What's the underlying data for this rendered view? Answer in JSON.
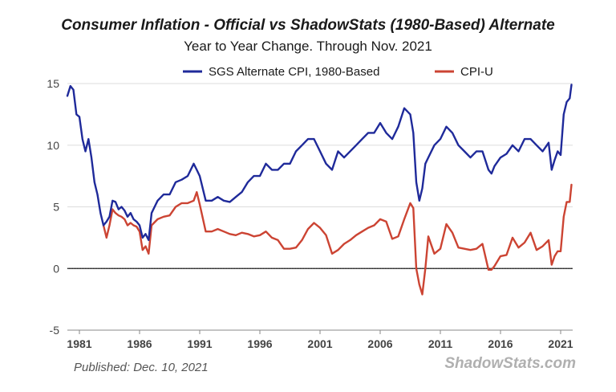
{
  "chart_data": {
    "type": "line",
    "title": "Consumer Inflation - Official vs ShadowStats (1980-Based) Alternate",
    "subtitle": "Year to Year Change. Through Nov. 2021",
    "published": "Published: Dec. 10, 2021",
    "source": "ShadowStats.com",
    "ylim": [
      -5,
      15
    ],
    "xlim": [
      1980.0,
      2022.0
    ],
    "yticks": [
      "-5",
      "0",
      "5",
      "10",
      "15"
    ],
    "xticks": [
      "1981",
      "1986",
      "1991",
      "1996",
      "2001",
      "2006",
      "2011",
      "2016",
      "2021"
    ],
    "grid": true,
    "legend_position": "top",
    "colors": {
      "sgs": "#1f2a9a",
      "cpiu": "#cc4433",
      "zero_line": "#333333",
      "grid": "#dddddd"
    },
    "series": [
      {
        "name": "SGS Alternate CPI, 1980-Based",
        "color": "#1f2a9a",
        "x": [
          1980.0,
          1980.25,
          1980.5,
          1980.75,
          1981.0,
          1981.25,
          1981.5,
          1981.75,
          1982.0,
          1982.25,
          1982.5,
          1982.75,
          1983.0,
          1983.25,
          1983.5,
          1983.75,
          1984.0,
          1984.25,
          1984.5,
          1984.75,
          1985.0,
          1985.25,
          1985.5,
          1985.75,
          1986.0,
          1986.25,
          1986.5,
          1986.75,
          1987.0,
          1987.5,
          1988.0,
          1988.5,
          1989.0,
          1989.5,
          1990.0,
          1990.5,
          1990.75,
          1991.0,
          1991.5,
          1992.0,
          1992.5,
          1993.0,
          1993.5,
          1994.0,
          1994.5,
          1995.0,
          1995.5,
          1996.0,
          1996.5,
          1997.0,
          1997.5,
          1998.0,
          1998.5,
          1999.0,
          1999.5,
          2000.0,
          2000.5,
          2001.0,
          2001.5,
          2002.0,
          2002.5,
          2003.0,
          2003.5,
          2004.0,
          2004.5,
          2005.0,
          2005.5,
          2006.0,
          2006.5,
          2007.0,
          2007.5,
          2008.0,
          2008.5,
          2008.75,
          2009.0,
          2009.25,
          2009.5,
          2009.75,
          2010.0,
          2010.5,
          2011.0,
          2011.5,
          2012.0,
          2012.5,
          2013.0,
          2013.5,
          2014.0,
          2014.5,
          2015.0,
          2015.25,
          2015.5,
          2016.0,
          2016.5,
          2017.0,
          2017.5,
          2018.0,
          2018.5,
          2019.0,
          2019.5,
          2020.0,
          2020.25,
          2020.5,
          2020.75,
          2021.0,
          2021.25,
          2021.5,
          2021.75,
          2021.9
        ],
        "values": [
          14.0,
          14.8,
          14.5,
          12.5,
          12.3,
          10.5,
          9.5,
          10.5,
          9.0,
          7.0,
          6.0,
          4.5,
          3.5,
          3.8,
          4.2,
          5.5,
          5.4,
          4.8,
          5.0,
          4.7,
          4.2,
          4.5,
          4.0,
          3.8,
          3.5,
          2.5,
          2.8,
          2.3,
          4.5,
          5.5,
          6.0,
          6.0,
          7.0,
          7.2,
          7.5,
          8.5,
          8.0,
          7.5,
          5.5,
          5.5,
          5.8,
          5.5,
          5.4,
          5.8,
          6.2,
          7.0,
          7.5,
          7.5,
          8.5,
          8.0,
          8.0,
          8.5,
          8.5,
          9.5,
          10.0,
          10.5,
          10.5,
          9.5,
          8.5,
          8.0,
          9.5,
          9.0,
          9.5,
          10.0,
          10.5,
          11.0,
          11.0,
          11.8,
          11.0,
          10.5,
          11.5,
          13.0,
          12.5,
          11.0,
          7.0,
          5.5,
          6.5,
          8.5,
          9.0,
          10.0,
          10.5,
          11.5,
          11.0,
          10.0,
          9.5,
          9.0,
          9.5,
          9.5,
          8.0,
          7.7,
          8.3,
          9.0,
          9.3,
          10.0,
          9.5,
          10.5,
          10.5,
          10.0,
          9.5,
          10.2,
          8.0,
          8.8,
          9.5,
          9.2,
          12.5,
          13.5,
          13.8,
          14.9
        ]
      },
      {
        "name": "CPI-U",
        "color": "#cc4433",
        "x": [
          1983.0,
          1983.25,
          1983.5,
          1983.75,
          1984.0,
          1984.25,
          1984.5,
          1984.75,
          1985.0,
          1985.25,
          1985.5,
          1985.75,
          1986.0,
          1986.25,
          1986.5,
          1986.75,
          1987.0,
          1987.5,
          1988.0,
          1988.5,
          1989.0,
          1989.5,
          1990.0,
          1990.5,
          1990.75,
          1991.0,
          1991.5,
          1992.0,
          1992.5,
          1993.0,
          1993.5,
          1994.0,
          1994.5,
          1995.0,
          1995.5,
          1996.0,
          1996.5,
          1997.0,
          1997.5,
          1998.0,
          1998.5,
          1999.0,
          1999.5,
          2000.0,
          2000.5,
          2001.0,
          2001.5,
          2002.0,
          2002.5,
          2003.0,
          2003.5,
          2004.0,
          2004.5,
          2005.0,
          2005.5,
          2006.0,
          2006.5,
          2007.0,
          2007.5,
          2008.0,
          2008.5,
          2008.75,
          2009.0,
          2009.25,
          2009.5,
          2009.75,
          2010.0,
          2010.5,
          2011.0,
          2011.5,
          2012.0,
          2012.5,
          2013.0,
          2013.5,
          2014.0,
          2014.5,
          2015.0,
          2015.25,
          2015.5,
          2016.0,
          2016.5,
          2017.0,
          2017.5,
          2018.0,
          2018.5,
          2019.0,
          2019.5,
          2020.0,
          2020.25,
          2020.5,
          2020.75,
          2021.0,
          2021.25,
          2021.5,
          2021.75,
          2021.9
        ],
        "values": [
          3.5,
          2.5,
          3.5,
          4.8,
          4.5,
          4.3,
          4.2,
          4.0,
          3.5,
          3.7,
          3.5,
          3.4,
          3.0,
          1.5,
          1.8,
          1.2,
          3.5,
          4.0,
          4.2,
          4.3,
          5.0,
          5.3,
          5.3,
          5.5,
          6.2,
          5.2,
          3.0,
          3.0,
          3.2,
          3.0,
          2.8,
          2.7,
          2.9,
          2.8,
          2.6,
          2.7,
          3.0,
          2.5,
          2.3,
          1.6,
          1.6,
          1.7,
          2.3,
          3.2,
          3.7,
          3.3,
          2.7,
          1.2,
          1.5,
          2.0,
          2.3,
          2.7,
          3.0,
          3.3,
          3.5,
          4.0,
          3.8,
          2.4,
          2.6,
          4.0,
          5.3,
          4.9,
          0.0,
          -1.3,
          -2.1,
          0.0,
          2.6,
          1.2,
          1.6,
          3.6,
          2.9,
          1.7,
          1.6,
          1.5,
          1.6,
          2.0,
          -0.1,
          -0.1,
          0.2,
          1.0,
          1.1,
          2.5,
          1.7,
          2.1,
          2.9,
          1.5,
          1.8,
          2.3,
          0.3,
          1.0,
          1.4,
          1.4,
          4.2,
          5.4,
          5.4,
          6.8
        ]
      }
    ]
  }
}
